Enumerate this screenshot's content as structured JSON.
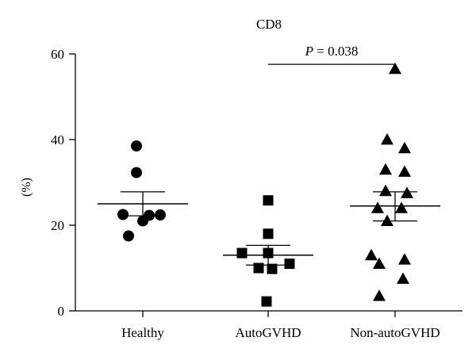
{
  "chart_data": {
    "type": "scatter",
    "title": "CD8",
    "ylabel": "(%)",
    "xlabel": "",
    "ylim": [
      0,
      60
    ],
    "yticks": [
      0,
      20,
      40,
      60
    ],
    "categories": [
      "Healthy",
      "AutoGVHD",
      "Non-autoGVHD"
    ],
    "groups": [
      {
        "category": "Healthy",
        "marker": "circle",
        "values": [
          38.5,
          32.3,
          22.5,
          22.3,
          21.0,
          22.4,
          17.5
        ],
        "mean": 25.0,
        "sem_upper": 27.8,
        "sem_lower": 22.2
      },
      {
        "category": "AutoGVHD",
        "marker": "square",
        "values": [
          25.8,
          18.0,
          13.5,
          13.5,
          11.0,
          10.0,
          9.8,
          2.2
        ],
        "mean": 13.0,
        "sem_upper": 15.3,
        "sem_lower": 10.7
      },
      {
        "category": "Non-autoGVHD",
        "marker": "triangle",
        "values": [
          56.5,
          40.0,
          38.0,
          33.0,
          32.5,
          28.0,
          27.5,
          24.0,
          24.0,
          21.0,
          13.0,
          12.0,
          11.0,
          7.5,
          3.5
        ],
        "mean": 24.5,
        "sem_upper": 27.8,
        "sem_lower": 21.0
      }
    ],
    "annotation": {
      "text": "P = 0.038",
      "p_label": "P",
      "p_rest": " = 0.038",
      "from": "AutoGVHD",
      "to": "Non-autoGVHD",
      "level": 58.5
    }
  }
}
